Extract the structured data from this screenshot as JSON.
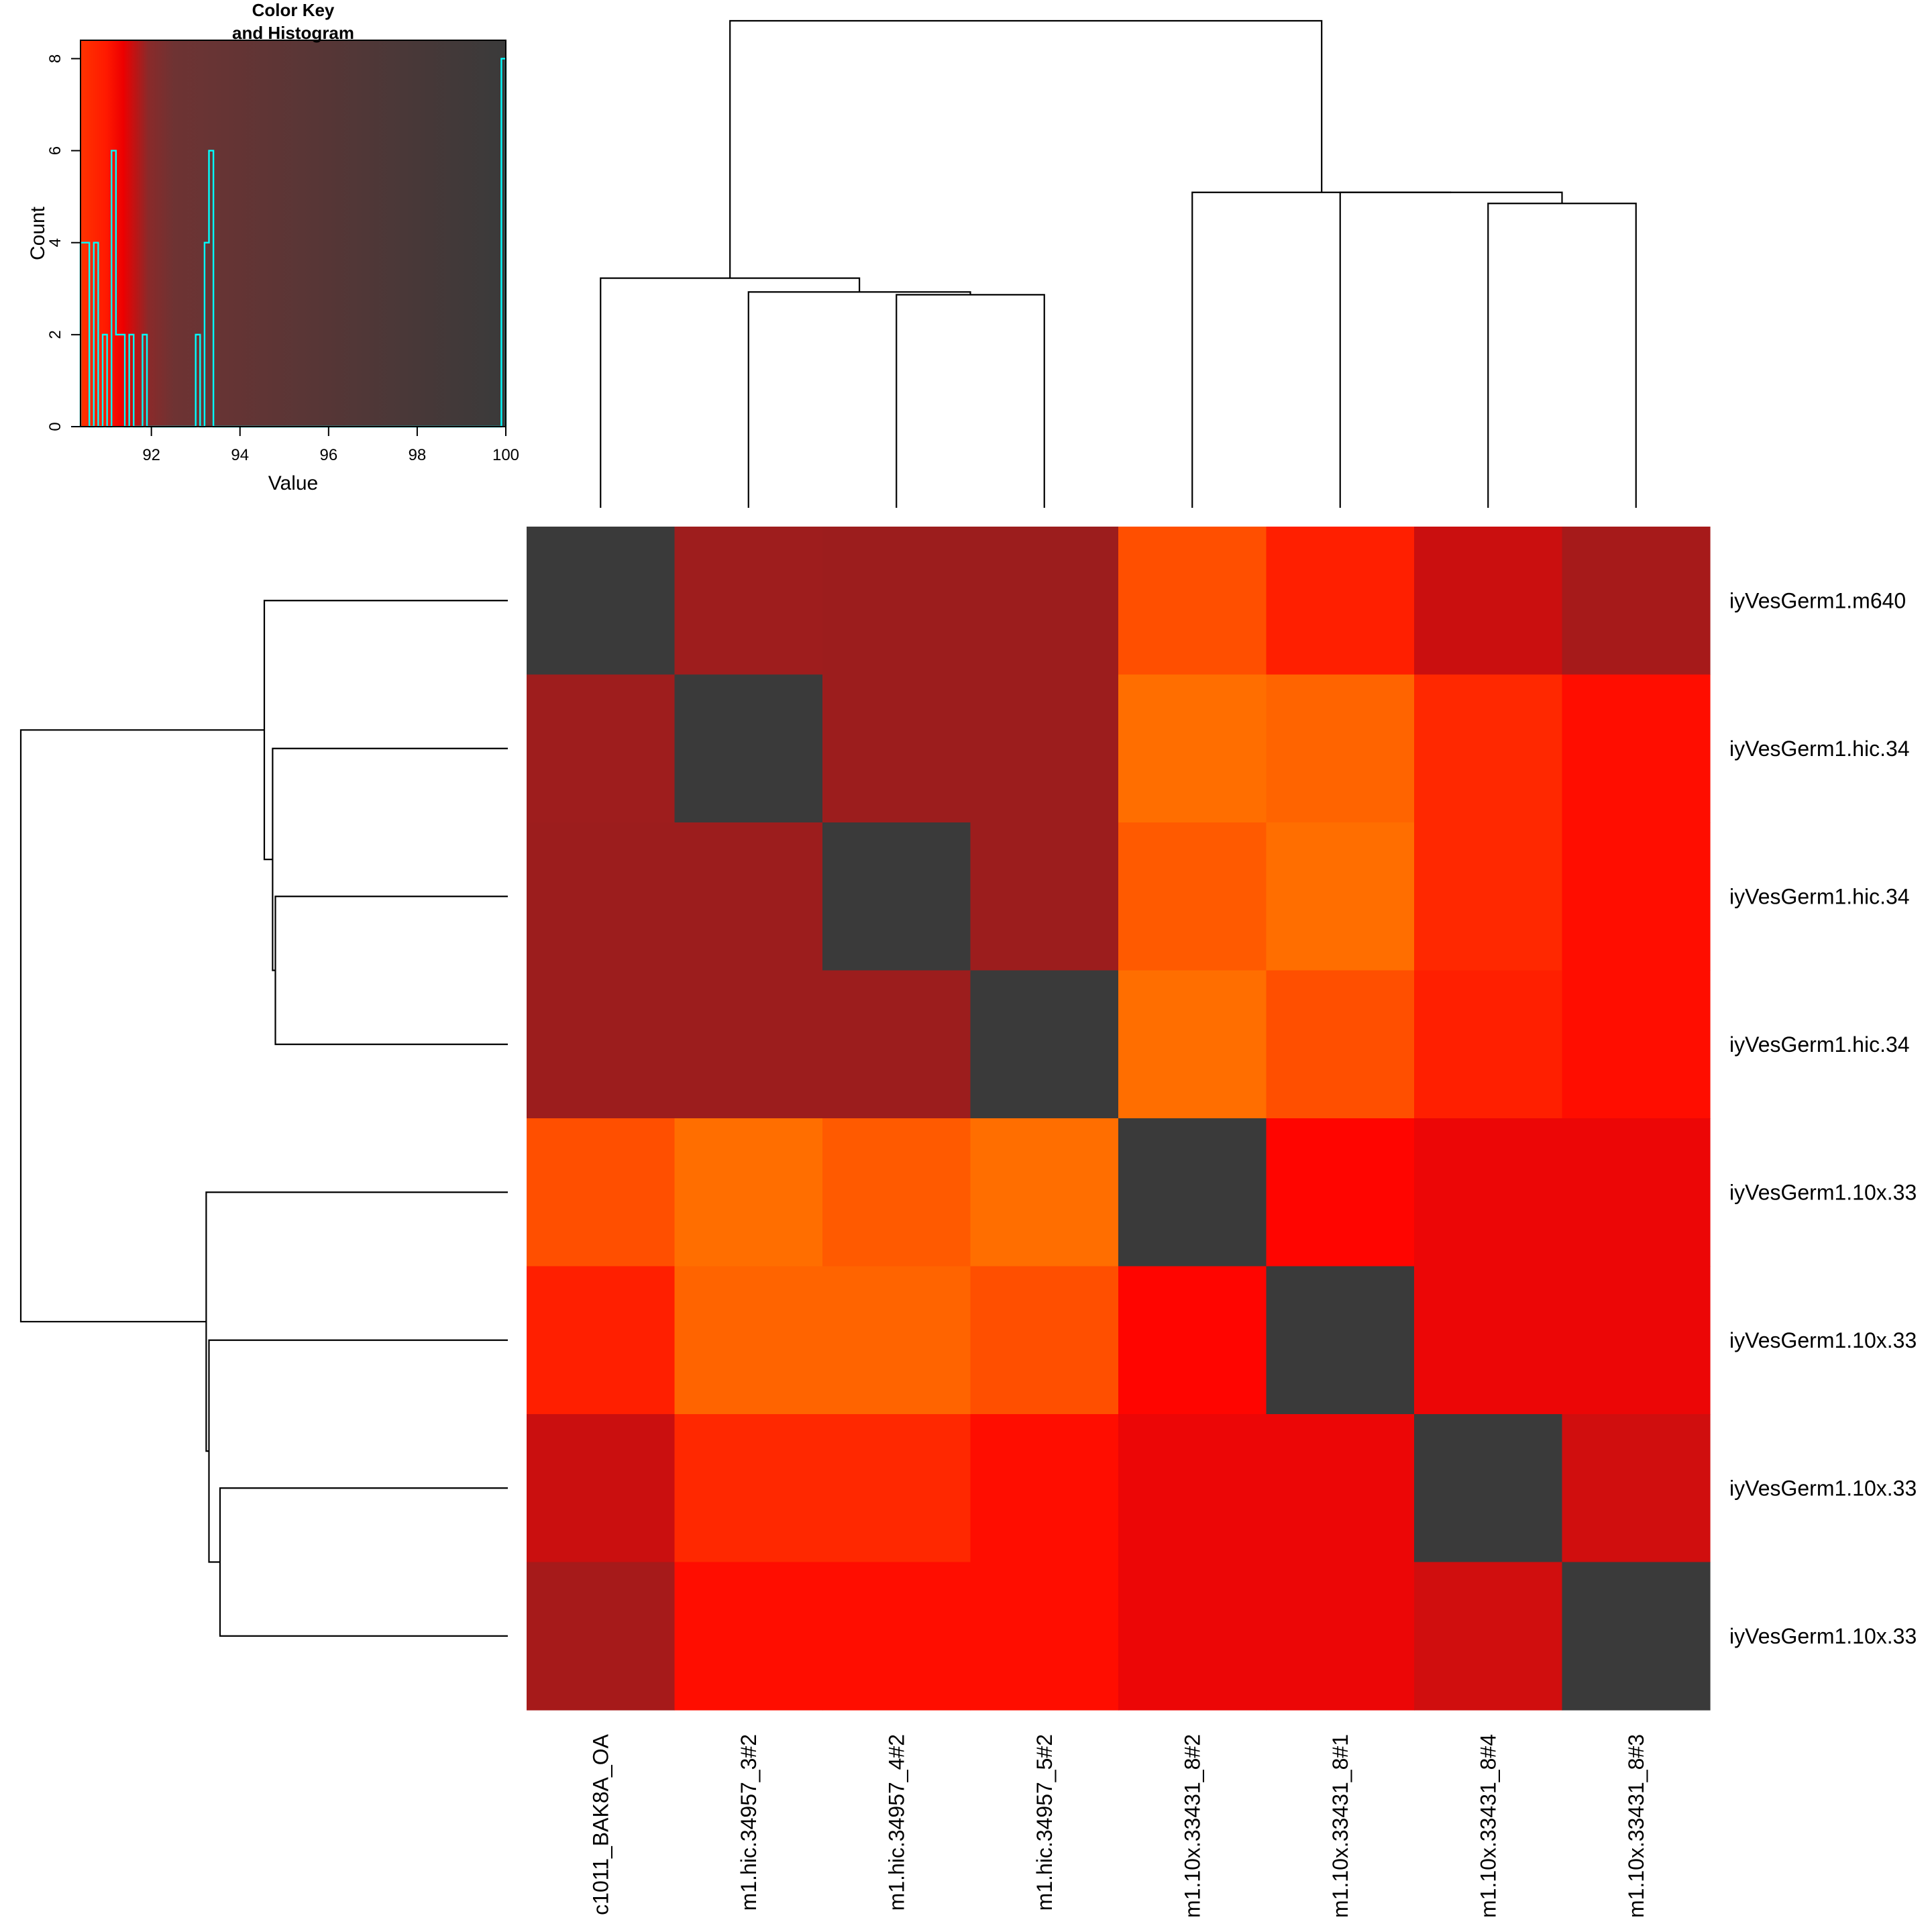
{
  "chart_data": [
    {
      "type": "heatmap",
      "col_labels": [
        "c1011_BAK8A_OA",
        "m1.hic.34957_3#2",
        "m1.hic.34957_4#2",
        "m1.hic.34957_5#2",
        "m1.10x.33431_8#2",
        "m1.10x.33431_8#1",
        "m1.10x.33431_8#4",
        "m1.10x.33431_8#3"
      ],
      "row_labels": [
        "iyVesGerm1.m640",
        "iyVesGerm1.hic.34",
        "iyVesGerm1.hic.34",
        "iyVesGerm1.hic.34",
        "iyVesGerm1.10x.33",
        "iyVesGerm1.10x.33",
        "iyVesGerm1.10x.33",
        "iyVesGerm1.10x.33"
      ],
      "values": [
        [
          100,
          93.3,
          93.4,
          93.4,
          90.7,
          91.2,
          92.0,
          93.0
        ],
        [
          93.3,
          100,
          93.4,
          93.4,
          90.4,
          90.5,
          91.1,
          91.4
        ],
        [
          93.4,
          93.4,
          100,
          93.4,
          90.6,
          90.4,
          91.1,
          91.4
        ],
        [
          93.4,
          93.4,
          93.4,
          100,
          90.4,
          90.7,
          91.2,
          91.4
        ],
        [
          90.7,
          90.4,
          90.6,
          90.4,
          100,
          91.5,
          91.6,
          91.6
        ],
        [
          91.2,
          90.5,
          90.5,
          90.7,
          91.5,
          100,
          91.6,
          91.6
        ],
        [
          92.0,
          91.1,
          91.1,
          91.4,
          91.6,
          91.6,
          100,
          91.9
        ],
        [
          93.0,
          91.4,
          91.4,
          91.4,
          91.6,
          91.6,
          91.9,
          100
        ]
      ],
      "color_range": [
        90.4,
        100
      ],
      "colors": {
        "low": "#ff3300",
        "mid": "#ff0000",
        "high": "#3a3a3a"
      },
      "col_dendrogram": {
        "merges": [
          {
            "a": 6,
            "b": 7,
            "height": 5.5
          },
          {
            "a": 5,
            "b": "m1",
            "height": 5.7
          },
          {
            "a": 4,
            "b": "m2",
            "height": 5.7
          },
          {
            "a": 2,
            "b": 3,
            "height": 3.85
          },
          {
            "a": 1,
            "b": "m4",
            "height": 3.9
          },
          {
            "a": 0,
            "b": "m5",
            "height": 4.15
          },
          {
            "a": "m6",
            "b": "m3",
            "height": 8.8
          }
        ]
      },
      "row_dendrogram": {
        "merges": [
          {
            "a": 2,
            "b": 3,
            "height": 4.2
          },
          {
            "a": 1,
            "b": "m1",
            "height": 4.25
          },
          {
            "a": 0,
            "b": "m2",
            "height": 4.4
          },
          {
            "a": 6,
            "b": 7,
            "height": 5.2
          },
          {
            "a": 5,
            "b": "m4",
            "height": 5.4
          },
          {
            "a": 4,
            "b": "m5",
            "height": 5.45
          },
          {
            "a": "m3",
            "b": "m6",
            "height": 8.8
          }
        ]
      }
    },
    {
      "type": "histogram",
      "title": "Color Key\nand Histogram",
      "xlabel": "Value",
      "ylabel": "Count",
      "xlim": [
        90.4,
        100
      ],
      "ylim": [
        0,
        8.4
      ],
      "x_ticks": [
        92,
        94,
        96,
        98,
        100
      ],
      "y_ticks": [
        0,
        2,
        4,
        6,
        8
      ],
      "line_color": "#00ffff",
      "bins": [
        {
          "x0": 90.4,
          "x1": 90.5,
          "count": 4
        },
        {
          "x0": 90.5,
          "x1": 90.6,
          "count": 4
        },
        {
          "x0": 90.6,
          "x1": 90.7,
          "count": 0
        },
        {
          "x0": 90.7,
          "x1": 90.8,
          "count": 4
        },
        {
          "x0": 90.8,
          "x1": 90.9,
          "count": 0
        },
        {
          "x0": 90.9,
          "x1": 91.0,
          "count": 2
        },
        {
          "x0": 91.0,
          "x1": 91.1,
          "count": 0
        },
        {
          "x0": 91.1,
          "x1": 91.2,
          "count": 6
        },
        {
          "x0": 91.2,
          "x1": 91.3,
          "count": 2
        },
        {
          "x0": 91.3,
          "x1": 91.4,
          "count": 2
        },
        {
          "x0": 91.4,
          "x1": 91.5,
          "count": 0
        },
        {
          "x0": 91.5,
          "x1": 91.6,
          "count": 2
        },
        {
          "x0": 91.6,
          "x1": 91.7,
          "count": 0
        },
        {
          "x0": 91.7,
          "x1": 91.8,
          "count": 0
        },
        {
          "x0": 91.8,
          "x1": 91.9,
          "count": 2
        },
        {
          "x0": 91.9,
          "x1": 93.0,
          "count": 0
        },
        {
          "x0": 93.0,
          "x1": 93.1,
          "count": 2
        },
        {
          "x0": 93.1,
          "x1": 93.2,
          "count": 0
        },
        {
          "x0": 93.2,
          "x1": 93.3,
          "count": 4
        },
        {
          "x0": 93.3,
          "x1": 93.4,
          "count": 6
        },
        {
          "x0": 93.4,
          "x1": 99.9,
          "count": 0
        },
        {
          "x0": 99.9,
          "x1": 100,
          "count": 8
        }
      ]
    }
  ]
}
